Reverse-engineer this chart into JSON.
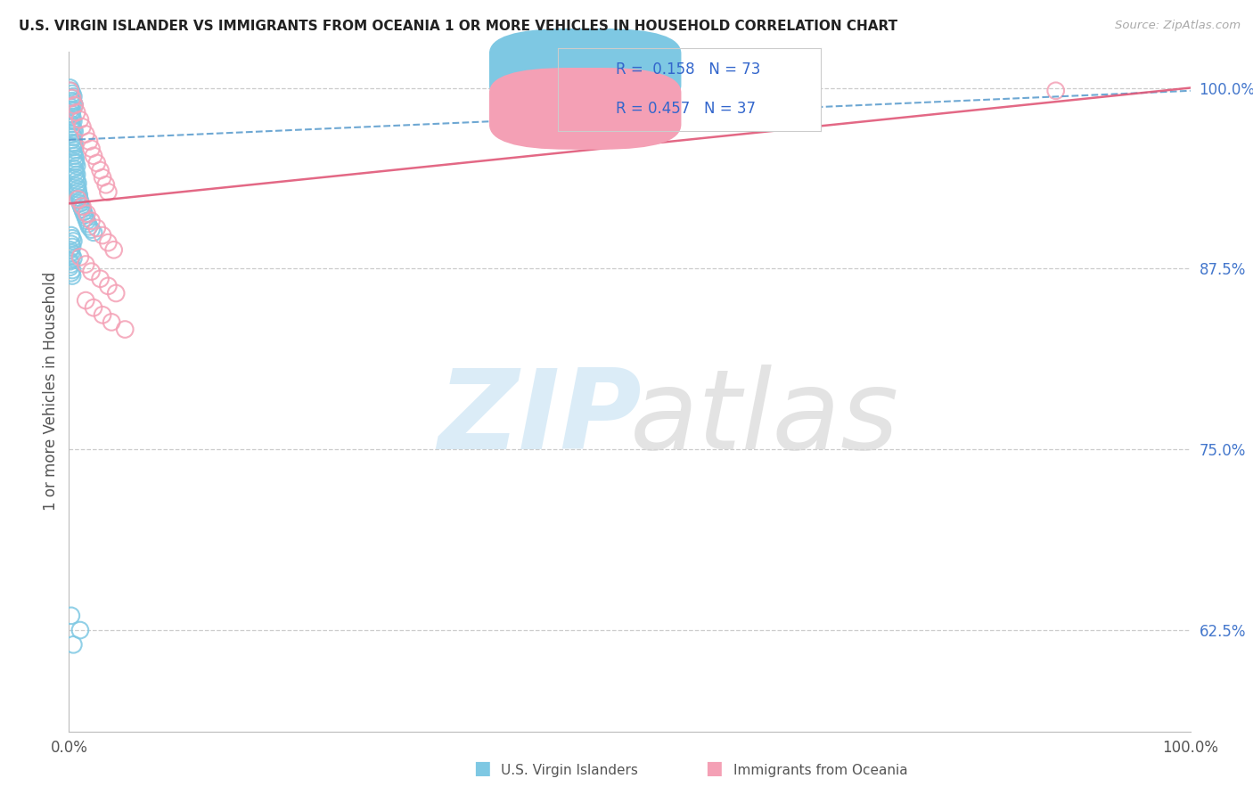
{
  "title": "U.S. VIRGIN ISLANDER VS IMMIGRANTS FROM OCEANIA 1 OR MORE VEHICLES IN HOUSEHOLD CORRELATION CHART",
  "source": "Source: ZipAtlas.com",
  "ylabel": "1 or more Vehicles in Household",
  "R1": 0.158,
  "N1": 73,
  "R2": 0.457,
  "N2": 37,
  "blue_color": "#7ec8e3",
  "pink_color": "#f4a0b5",
  "blue_line_color": "#5599cc",
  "pink_line_color": "#e05878",
  "bg_color": "#ffffff",
  "legend1_label": "U.S. Virgin Islanders",
  "legend2_label": "Immigrants from Oceania",
  "yticks": [
    0.625,
    0.75,
    0.875,
    1.0
  ],
  "ytick_labels": [
    "62.5%",
    "75.0%",
    "87.5%",
    "100.0%"
  ],
  "xlim": [
    0.0,
    1.0
  ],
  "ylim": [
    0.555,
    1.025
  ],
  "blue_x": [
    0.001,
    0.002,
    0.003,
    0.004,
    0.002,
    0.003,
    0.004,
    0.005,
    0.001,
    0.002,
    0.003,
    0.002,
    0.003,
    0.003,
    0.004,
    0.002,
    0.003,
    0.004,
    0.005,
    0.003,
    0.004,
    0.003,
    0.004,
    0.005,
    0.004,
    0.005,
    0.004,
    0.005,
    0.006,
    0.005,
    0.006,
    0.007,
    0.005,
    0.006,
    0.007,
    0.006,
    0.007,
    0.008,
    0.007,
    0.008,
    0.008,
    0.009,
    0.009,
    0.01,
    0.01,
    0.011,
    0.012,
    0.013,
    0.014,
    0.015,
    0.016,
    0.017,
    0.018,
    0.02,
    0.022,
    0.002,
    0.003,
    0.004,
    0.002,
    0.003,
    0.001,
    0.002,
    0.003,
    0.004,
    0.002,
    0.01,
    0.004,
    0.001,
    0.002,
    0.001,
    0.003,
    0.002,
    0.003
  ],
  "blue_y": [
    1.0,
    0.998,
    0.996,
    0.994,
    0.993,
    0.991,
    0.99,
    0.988,
    0.987,
    0.985,
    0.984,
    0.982,
    0.98,
    0.978,
    0.977,
    0.975,
    0.973,
    0.971,
    0.97,
    0.968,
    0.966,
    0.964,
    0.962,
    0.961,
    0.959,
    0.957,
    0.955,
    0.953,
    0.951,
    0.949,
    0.948,
    0.946,
    0.944,
    0.942,
    0.94,
    0.938,
    0.936,
    0.934,
    0.932,
    0.93,
    0.928,
    0.926,
    0.924,
    0.922,
    0.92,
    0.918,
    0.916,
    0.914,
    0.912,
    0.91,
    0.908,
    0.906,
    0.904,
    0.902,
    0.9,
    0.898,
    0.896,
    0.894,
    0.892,
    0.89,
    0.888,
    0.886,
    0.884,
    0.882,
    0.635,
    0.625,
    0.615,
    0.88,
    0.878,
    0.876,
    0.874,
    0.872,
    0.87
  ],
  "pink_x": [
    0.001,
    0.003,
    0.005,
    0.007,
    0.01,
    0.012,
    0.015,
    0.018,
    0.02,
    0.022,
    0.025,
    0.028,
    0.03,
    0.033,
    0.035,
    0.008,
    0.012,
    0.016,
    0.02,
    0.025,
    0.03,
    0.035,
    0.04,
    0.01,
    0.015,
    0.02,
    0.028,
    0.035,
    0.042,
    0.015,
    0.022,
    0.03,
    0.038,
    0.66,
    0.88,
    0.42,
    0.05
  ],
  "pink_y": [
    0.998,
    0.993,
    0.988,
    0.983,
    0.978,
    0.973,
    0.968,
    0.963,
    0.958,
    0.953,
    0.948,
    0.943,
    0.938,
    0.933,
    0.928,
    0.923,
    0.918,
    0.913,
    0.908,
    0.903,
    0.898,
    0.893,
    0.888,
    0.883,
    0.878,
    0.873,
    0.868,
    0.863,
    0.858,
    0.853,
    0.848,
    0.843,
    0.838,
    0.998,
    0.998,
    0.978,
    0.833
  ],
  "blue_trendline_x": [
    0.0,
    1.0
  ],
  "blue_trendline_y": [
    0.964,
    0.998
  ],
  "pink_trendline_x": [
    0.0,
    1.0
  ],
  "pink_trendline_y": [
    0.92,
    1.0
  ],
  "legend_R1_text": "R =  0.158   N = 73",
  "legend_R2_text": "R = 0.457   N = 37",
  "watermark_zip_color": "#cce5f5",
  "watermark_atlas_color": "#d8d8d8"
}
